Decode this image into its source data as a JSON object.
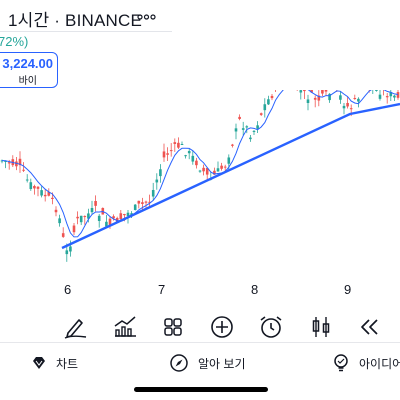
{
  "header": {
    "title": "1시간 · BINANCE",
    "more_icon": "more-dots-icon"
  },
  "price": {
    "change_text": "72%)",
    "value": "3,224.00",
    "action_label": "바이"
  },
  "chart": {
    "up_color": "#26a69a",
    "down_color": "#ef5350",
    "trendline_color": "#2962ff",
    "ma_color": "#2962ff",
    "x_axis_labels": [
      "6",
      "7",
      "8",
      "9"
    ]
  },
  "toolbar": {
    "items": [
      {
        "icon": "pen-icon"
      },
      {
        "icon": "indicators-icon"
      },
      {
        "icon": "layouts-icon"
      },
      {
        "icon": "add-icon"
      },
      {
        "icon": "alarm-icon"
      },
      {
        "icon": "candle-type-icon"
      },
      {
        "icon": "replay-icon"
      }
    ]
  },
  "bottom_nav": {
    "chart_label": "차트",
    "explore_label": "알아 보기",
    "ideas_label": "아이디어"
  },
  "colors": {
    "accent": "#2962ff",
    "up": "#26a69a",
    "down": "#ef5350"
  }
}
